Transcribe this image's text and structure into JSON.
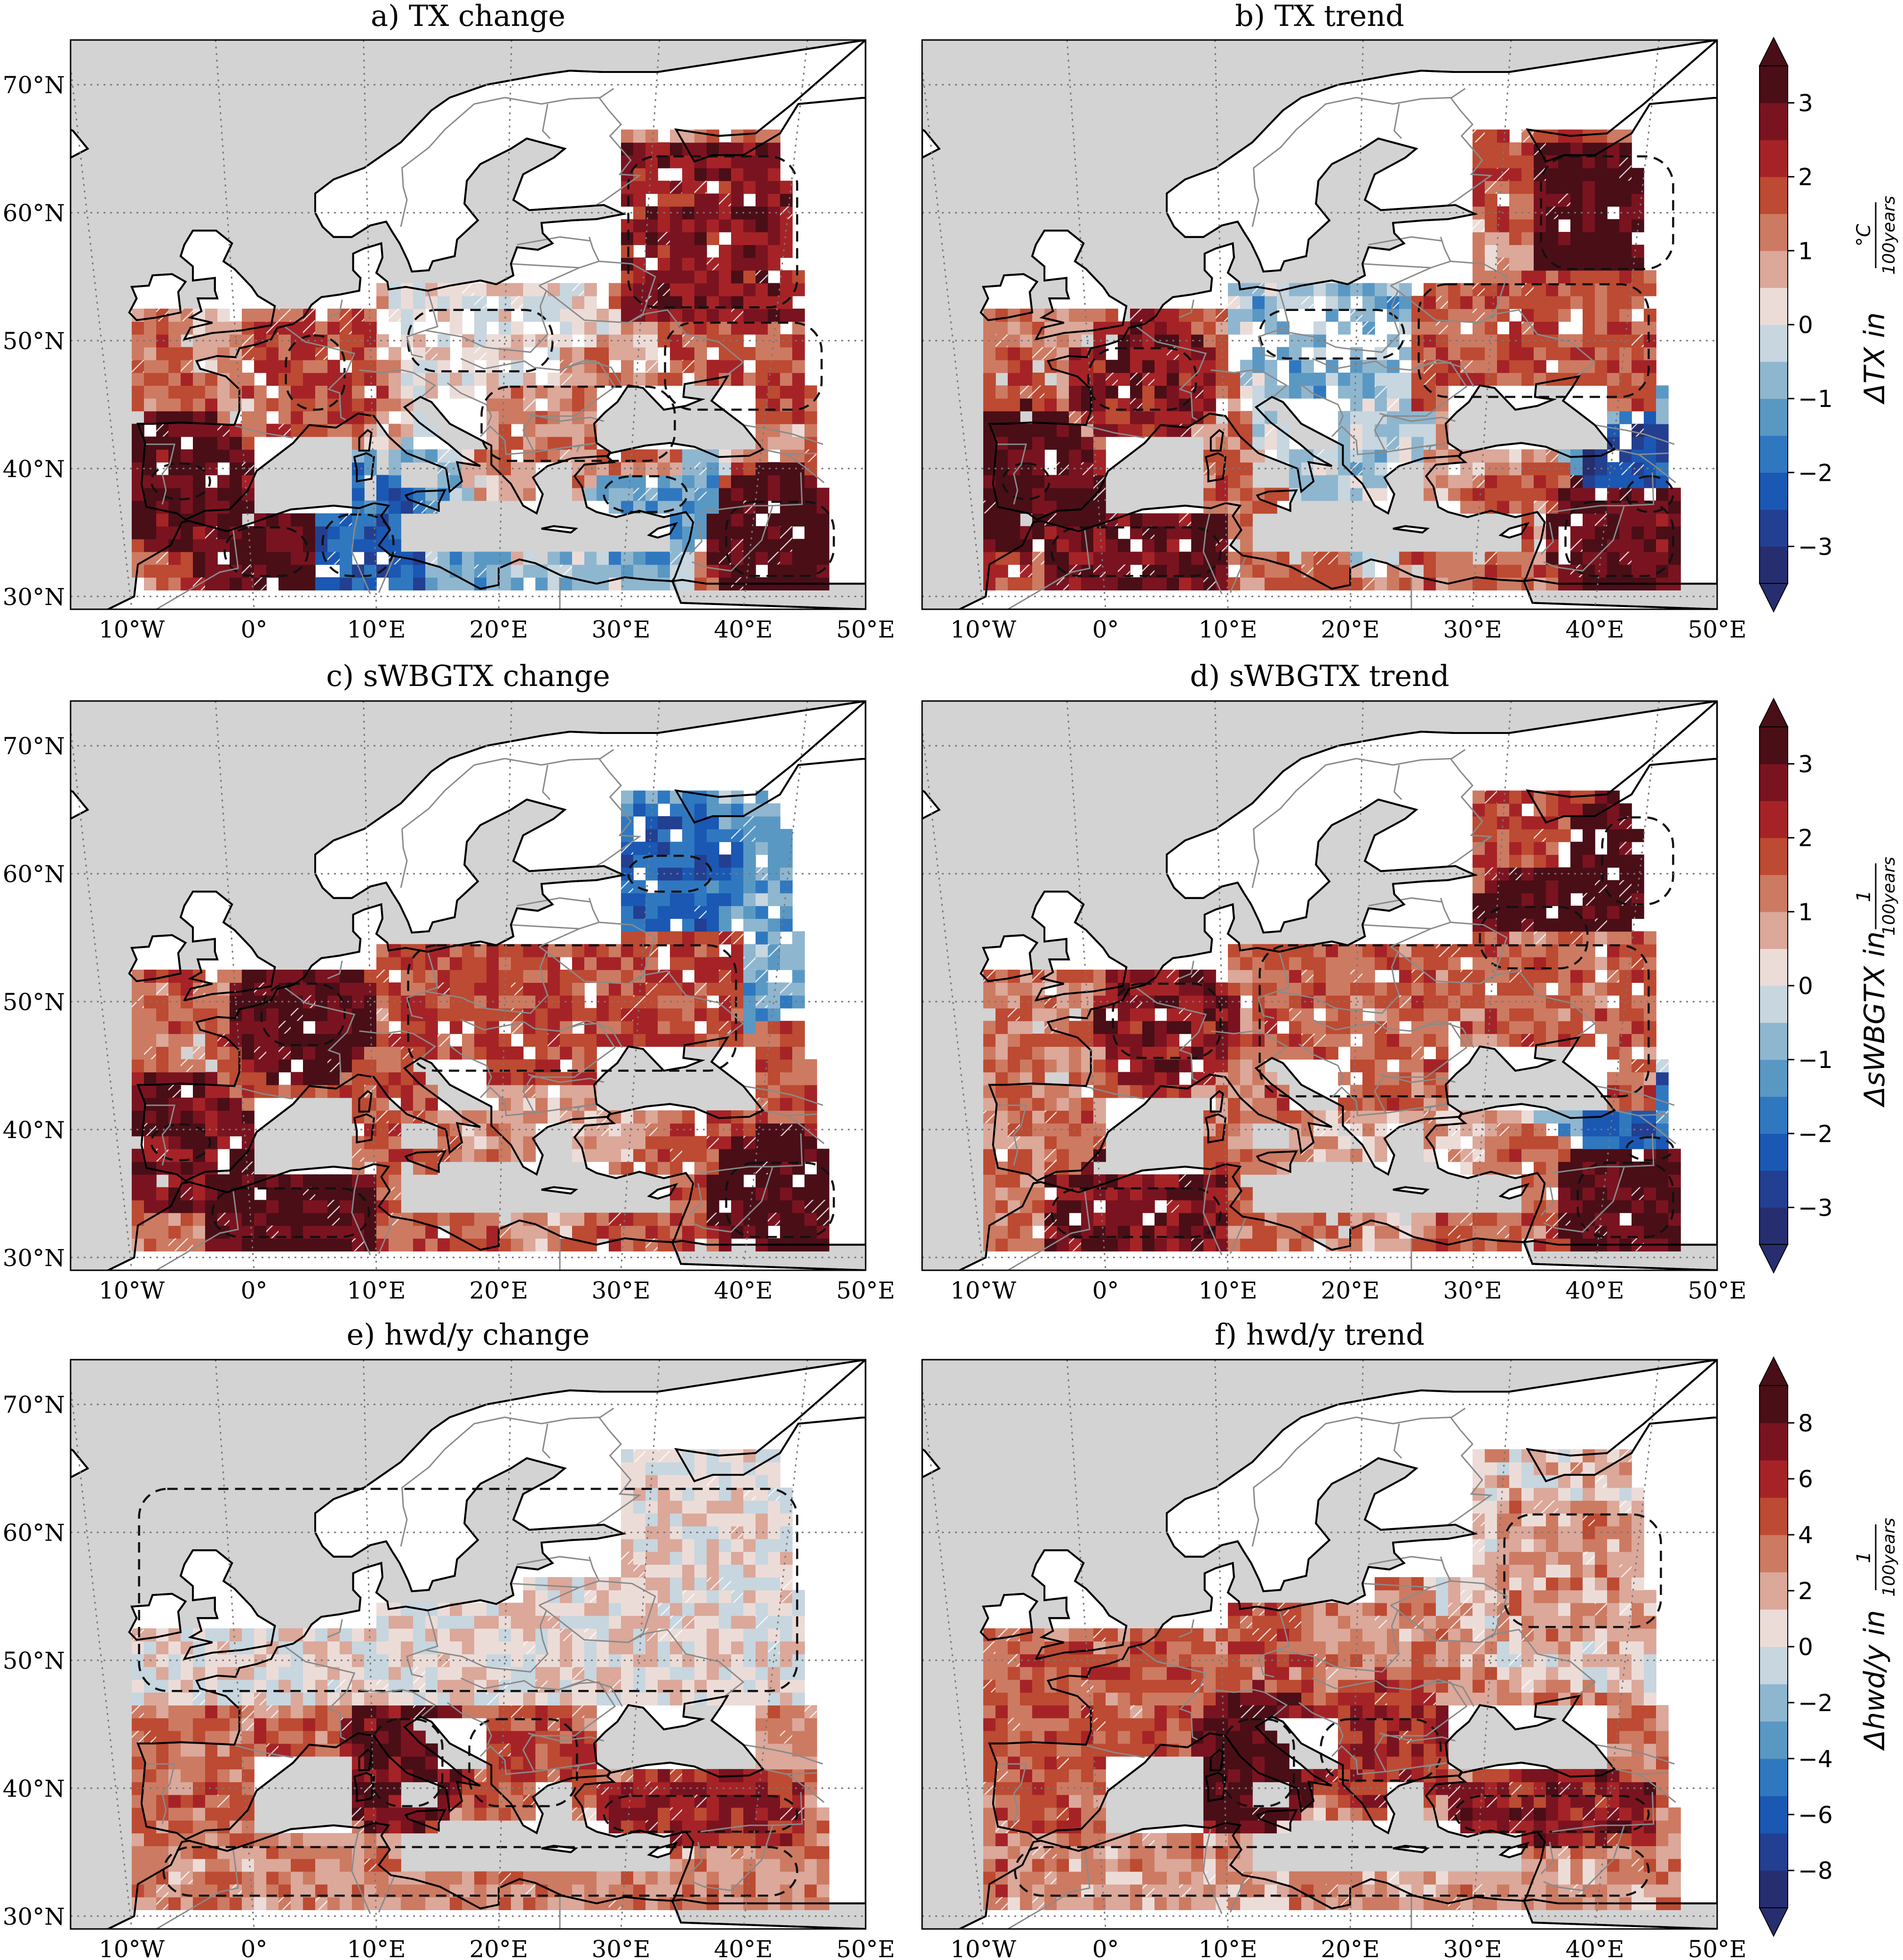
{
  "figure": {
    "panels": [
      {
        "id": "a",
        "title": "a) TX change",
        "field": "tx_change"
      },
      {
        "id": "b",
        "title": "b) TX trend",
        "field": "tx_trend"
      },
      {
        "id": "c",
        "title": "c) sWBGTX change",
        "field": "wbgt_change"
      },
      {
        "id": "d",
        "title": "d) sWBGTX trend",
        "field": "wbgt_trend"
      },
      {
        "id": "e",
        "title": "e) hwd/y change",
        "field": "hwd_change"
      },
      {
        "id": "f",
        "title": "f) hwd/y trend",
        "field": "hwd_trend"
      }
    ],
    "lat_ticks": [
      "70°N",
      "60°N",
      "50°N",
      "40°N",
      "30°N"
    ],
    "lon_ticks": [
      "10°W",
      "0°",
      "10°E",
      "20°E",
      "30°E",
      "40°E",
      "50°E"
    ],
    "colorbars": [
      {
        "ticks": [
          "3",
          "2",
          "1",
          "0",
          "−1",
          "−2",
          "−3"
        ],
        "label_main": "ΔTX in",
        "label_num": "°C",
        "label_den": "100years"
      },
      {
        "ticks": [
          "3",
          "2",
          "1",
          "0",
          "−1",
          "−2",
          "−3"
        ],
        "label_main": "ΔsWBGTX in",
        "label_num": "1",
        "label_den": "100years"
      },
      {
        "ticks": [
          "8",
          "6",
          "4",
          "2",
          "0",
          "−2",
          "−4",
          "−6",
          "−8"
        ],
        "label_main": "Δhwd/y in",
        "label_num": "1",
        "label_den": "100years"
      }
    ],
    "colors": {
      "ocean": "#d3d3d3",
      "land": "#ffffff",
      "coast": "#000000",
      "border": "#8a8a8a",
      "scale": [
        "#262e6f",
        "#233f91",
        "#1a58b3",
        "#2f78c0",
        "#5a98c4",
        "#8fb6cf",
        "#c7d6df",
        "#ecdcd8",
        "#dba89a",
        "#cd7a62",
        "#bd4a32",
        "#a52326",
        "#7a1320",
        "#4a0e17"
      ]
    }
  },
  "chart_data": {
    "type": "heatmap",
    "description_note": "",
    "domain": {
      "lon": [
        -15,
        50
      ],
      "lat": [
        30,
        72
      ]
    },
    "panels": [
      {
        "id": "a",
        "colorbar": 0,
        "cmin": -3,
        "cmax": 3,
        "regions": [
          {
            "lon": [
              -9,
              -3
            ],
            "lat": [
              37,
              41
            ],
            "value": 2.6
          },
          {
            "lon": [
              -3,
              5
            ],
            "lat": [
              31,
              36
            ],
            "value": 2.8
          },
          {
            "lon": [
              2,
              8
            ],
            "lat": [
              44,
              51
            ],
            "value": 1.6
          },
          {
            "lon": [
              12,
              25
            ],
            "lat": [
              47,
              53
            ],
            "value": 0.2
          },
          {
            "lon": [
              18,
              35
            ],
            "lat": [
              40,
              47
            ],
            "value": 1.0
          },
          {
            "lon": [
              30,
              45
            ],
            "lat": [
              52,
              65
            ],
            "value": 2.2
          },
          {
            "lon": [
              33,
              47
            ],
            "lat": [
              44,
              52
            ],
            "value": 1.5
          },
          {
            "lon": [
              38,
              48
            ],
            "lat": [
              31,
              38
            ],
            "value": 2.9
          },
          {
            "lon": [
              5,
              12
            ],
            "lat": [
              31,
              37
            ],
            "value": -1.8
          },
          {
            "lon": [
              28,
              36
            ],
            "lat": [
              36,
              40
            ],
            "value": -1.0
          }
        ]
      },
      {
        "id": "b",
        "colorbar": 0,
        "cmin": -3,
        "cmax": 3,
        "regions": [
          {
            "lon": [
              -9,
              -4
            ],
            "lat": [
              37,
              41
            ],
            "value": 2.8
          },
          {
            "lon": [
              -5,
              10
            ],
            "lat": [
              31,
              36
            ],
            "value": 2.5
          },
          {
            "lon": [
              -2,
              8
            ],
            "lat": [
              44,
              50
            ],
            "value": 2.2
          },
          {
            "lon": [
              12,
              25
            ],
            "lat": [
              48,
              53
            ],
            "value": -0.8
          },
          {
            "lon": [
              25,
              45
            ],
            "lat": [
              45,
              55
            ],
            "value": 1.4
          },
          {
            "lon": [
              35,
              47
            ],
            "lat": [
              55,
              65
            ],
            "value": 2.9
          },
          {
            "lon": [
              37,
              47
            ],
            "lat": [
              31,
              38
            ],
            "value": 2.6
          },
          {
            "lon": [
              42,
              47
            ],
            "lat": [
              36,
              40
            ],
            "value": -2.2
          }
        ]
      },
      {
        "id": "c",
        "colorbar": 1,
        "cmin": -3,
        "cmax": 3,
        "regions": [
          {
            "lon": [
              -9,
              -3
            ],
            "lat": [
              37,
              41
            ],
            "value": 2.5
          },
          {
            "lon": [
              -4,
              10
            ],
            "lat": [
              31,
              36
            ],
            "value": 2.8
          },
          {
            "lon": [
              0,
              8
            ],
            "lat": [
              46,
              52
            ],
            "value": 2.7
          },
          {
            "lon": [
              12,
              40
            ],
            "lat": [
              44,
              55
            ],
            "value": 1.6
          },
          {
            "lon": [
              30,
              38
            ],
            "lat": [
              58,
              62
            ],
            "value": -1.8
          },
          {
            "lon": [
              38,
              48
            ],
            "lat": [
              31,
              38
            ],
            "value": 2.9
          }
        ]
      },
      {
        "id": "d",
        "colorbar": 1,
        "cmin": -3,
        "cmax": 3,
        "regions": [
          {
            "lon": [
              -5,
              10
            ],
            "lat": [
              31,
              36
            ],
            "value": 2.4
          },
          {
            "lon": [
              0,
              10
            ],
            "lat": [
              45,
              52
            ],
            "value": 2.2
          },
          {
            "lon": [
              12,
              45
            ],
            "lat": [
              42,
              55
            ],
            "value": 1.3
          },
          {
            "lon": [
              30,
              40
            ],
            "lat": [
              52,
              58
            ],
            "value": 2.8
          },
          {
            "lon": [
              40,
              47
            ],
            "lat": [
              57,
              65
            ],
            "value": 2.9
          },
          {
            "lon": [
              38,
              47
            ],
            "lat": [
              31,
              38
            ],
            "value": 2.7
          },
          {
            "lon": [
              42,
              47
            ],
            "lat": [
              37,
              40
            ],
            "value": -1.8
          }
        ]
      },
      {
        "id": "e",
        "colorbar": 2,
        "cmin": -9,
        "cmax": 9,
        "regions": [
          {
            "lon": [
              -10,
              45
            ],
            "lat": [
              47,
              64
            ],
            "value": 0.6
          },
          {
            "lon": [
              9,
              16
            ],
            "lat": [
              38,
              46
            ],
            "value": 7.5
          },
          {
            "lon": [
              17,
              27
            ],
            "lat": [
              38,
              46
            ],
            "value": 4.5
          },
          {
            "lon": [
              28,
              45
            ],
            "lat": [
              36,
              40
            ],
            "value": 6.0
          },
          {
            "lon": [
              -8,
              45
            ],
            "lat": [
              31,
              36
            ],
            "value": 2.8
          }
        ]
      },
      {
        "id": "f",
        "colorbar": 2,
        "cmin": -9,
        "cmax": 9,
        "regions": [
          {
            "lon": [
              32,
              46
            ],
            "lat": [
              52,
              62
            ],
            "value": 2.5
          },
          {
            "lon": [
              9,
              16
            ],
            "lat": [
              38,
              46
            ],
            "value": 8.0
          },
          {
            "lon": [
              17,
              28
            ],
            "lat": [
              40,
              46
            ],
            "value": 5.5
          },
          {
            "lon": [
              28,
              45
            ],
            "lat": [
              36,
              40
            ],
            "value": 6.5
          },
          {
            "lon": [
              -8,
              45
            ],
            "lat": [
              31,
              36
            ],
            "value": 2.5
          }
        ]
      }
    ]
  }
}
